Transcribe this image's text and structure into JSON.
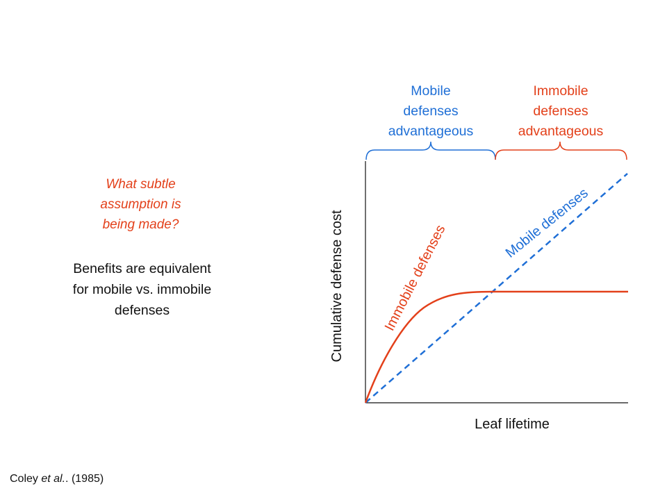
{
  "question": {
    "lines": [
      "What subtle",
      "assumption is",
      "being made?"
    ]
  },
  "answer": {
    "lines": [
      "Benefits are equivalent",
      "for mobile vs. immobile",
      "defenses"
    ]
  },
  "citation": {
    "author": "Coley",
    "etal": "et al.",
    "year": "(1985)"
  },
  "regions": {
    "mobile": {
      "lines": [
        "Mobile",
        "defenses",
        "advantageous"
      ],
      "color": "#1f6fd6"
    },
    "immobile": {
      "lines": [
        "Immobile",
        "defenses",
        "advantageous"
      ],
      "color": "#e3401a"
    }
  },
  "chart_data": {
    "type": "line",
    "xlabel": "Leaf lifetime",
    "ylabel": "Cumulative defense cost",
    "grid": false,
    "axis_ticks": false,
    "series": [
      {
        "name": "Immobile defenses",
        "color": "#e3401a",
        "style": "solid",
        "shape": "rises steeply from the origin, then levels off to a constant cost"
      },
      {
        "name": "Mobile defenses",
        "color": "#1f6fd6",
        "style": "dashed",
        "shape": "linear increase from the origin"
      }
    ]
  }
}
